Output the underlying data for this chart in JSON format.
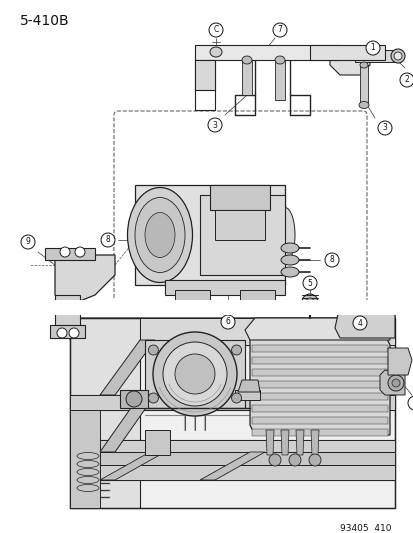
{
  "figure_id": "5-410B",
  "doc_number": "93405  410",
  "background_color": "#ffffff",
  "line_color": "#222222",
  "text_color": "#111111",
  "fig_width": 4.14,
  "fig_height": 5.33,
  "dpi": 100,
  "title_fontsize": 10,
  "doc_num_fontsize": 6.5,
  "callout_r": 0.016
}
